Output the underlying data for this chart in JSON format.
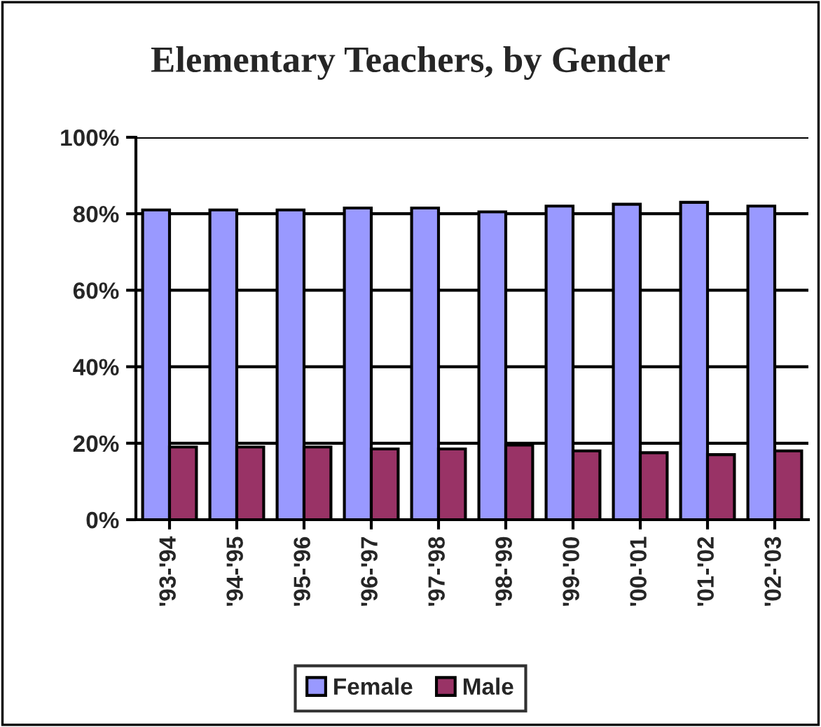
{
  "chart_data": {
    "type": "bar",
    "title": "Elementary Teachers, by Gender",
    "categories": [
      "'93-'94",
      "'94-'95",
      "'95-'96",
      "'96-'97",
      "'97-'98",
      "'98-'99",
      "'99-'00",
      "'00-'01",
      "'01-'02",
      "'02-'03"
    ],
    "series": [
      {
        "name": "Female",
        "color": "#9999ff",
        "values": [
          81,
          81,
          81,
          81.5,
          81.5,
          80.5,
          82,
          82.5,
          83,
          82
        ]
      },
      {
        "name": "Male",
        "color": "#993366",
        "values": [
          19,
          19,
          19,
          18.5,
          18.5,
          19.5,
          18,
          17.5,
          17,
          18
        ]
      }
    ],
    "ylim": [
      0,
      100
    ],
    "yticks": [
      {
        "value": 0,
        "label": "0%"
      },
      {
        "value": 20,
        "label": "20%"
      },
      {
        "value": 40,
        "label": "40%"
      },
      {
        "value": 60,
        "label": "60%"
      },
      {
        "value": 80,
        "label": "80%"
      },
      {
        "value": 100,
        "label": "100%"
      }
    ],
    "grid": "y",
    "legend": "bottom"
  }
}
